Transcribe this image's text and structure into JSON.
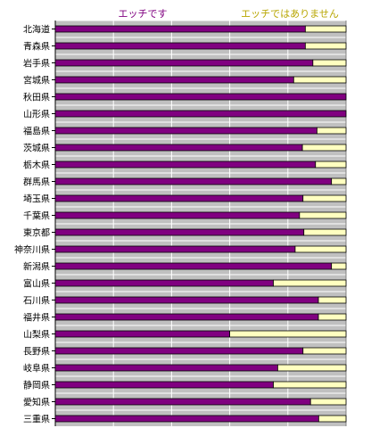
{
  "chart_data": {
    "type": "bar",
    "orientation": "horizontal",
    "stacked": true,
    "normalized": true,
    "xlim": [
      0,
      100
    ],
    "grid": true,
    "legend_placement": "top",
    "categories": [
      "北海道",
      "青森県",
      "岩手県",
      "宮城県",
      "秋田県",
      "山形県",
      "福島県",
      "茨城県",
      "栃木県",
      "群馬県",
      "埼玉県",
      "千葉県",
      "東京都",
      "神奈川県",
      "新潟県",
      "富山県",
      "石川県",
      "福井県",
      "山梨県",
      "長野県",
      "岐阜県",
      "静岡県",
      "愛知県",
      "三重県"
    ],
    "series": [
      {
        "name": "エッチです",
        "color": "#800080",
        "values": [
          86,
          86,
          88.6,
          82,
          100,
          100,
          90,
          85,
          89.5,
          95,
          85.2,
          84,
          85.5,
          82.5,
          95,
          75,
          90.5,
          90.5,
          60,
          85.2,
          76.5,
          75,
          87.8,
          90.6
        ]
      },
      {
        "name": "エッチではありません",
        "color": "#ffffc0",
        "values": [
          14,
          14,
          11.4,
          18,
          0,
          0,
          10,
          15,
          10.5,
          5,
          14.8,
          16,
          14.5,
          17.5,
          5,
          25,
          9.5,
          9.5,
          40,
          14.8,
          23.5,
          25,
          12.2,
          9.4
        ]
      }
    ]
  },
  "colors": {
    "plot_background": "#c0c0c0",
    "legend_series1": "#800080",
    "legend_series2": "#b8a600"
  }
}
